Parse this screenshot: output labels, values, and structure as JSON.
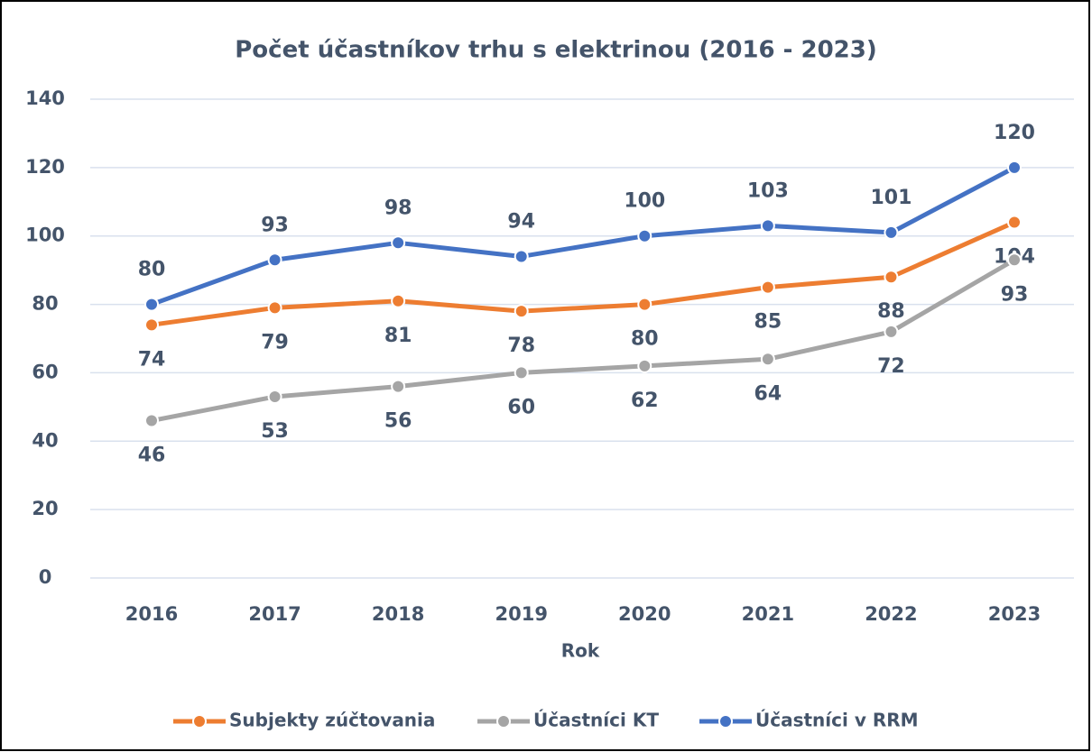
{
  "chart_data": {
    "type": "line",
    "title": "Počet účastníkov trhu s elektrinou (2016 - 2023)",
    "x_label": "Rok",
    "categories": [
      "2016",
      "2017",
      "2018",
      "2019",
      "2020",
      "2021",
      "2022",
      "2023"
    ],
    "series": [
      {
        "name": "Subjekty zúčtovania",
        "color": "#ed7d31",
        "values": [
          74,
          79,
          81,
          78,
          80,
          85,
          88,
          104
        ],
        "label_position": "below"
      },
      {
        "name": "Účastníci KT",
        "color": "#a5a5a5",
        "values": [
          46,
          53,
          56,
          60,
          62,
          64,
          72,
          93
        ],
        "label_position": "below"
      },
      {
        "name": "Účastníci v RRM",
        "color": "#4472c4",
        "values": [
          80,
          93,
          98,
          94,
          100,
          103,
          101,
          120
        ],
        "label_position": "above"
      }
    ],
    "ylim": [
      0,
      140
    ],
    "yticks": [
      0,
      20,
      40,
      60,
      80,
      100,
      120,
      140
    ],
    "grid": true,
    "legend": "bottom"
  }
}
